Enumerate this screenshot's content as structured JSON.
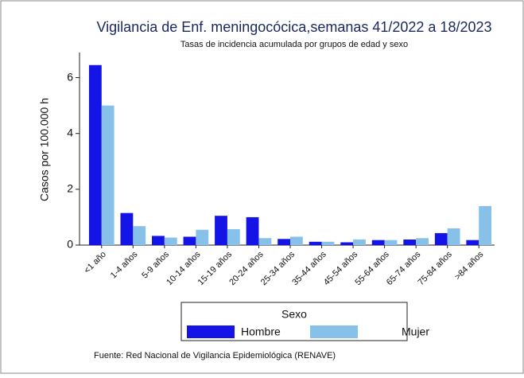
{
  "chart_data": {
    "type": "grouped_bar",
    "title": "Vigilancia de Enf. meningocócica,semanas 41/2022 a 18/2023",
    "subtitle": "Tasas de incidencia acumulada por grupos de edad y sexo",
    "y_label": "Casos por 100.000 h",
    "legend_title": "Sexo",
    "source": "Fuente: Red Nacional de Vigilancia Epidemiológica (RENAVE)",
    "categories": [
      "<1 año",
      "1-4 años",
      "5-9 años",
      "10-14 años",
      "15-19 años",
      "20-24 años",
      "25-34 años",
      "35-44 años",
      "45-54 años",
      "55-64 años",
      "65-74 años",
      "75-84 años",
      ">84 años"
    ],
    "series": [
      {
        "name": "Hombre",
        "color": "#1414e6",
        "values": [
          6.45,
          1.15,
          0.33,
          0.3,
          1.05,
          1.0,
          0.22,
          0.12,
          0.1,
          0.18,
          0.2,
          0.43,
          0.18
        ]
      },
      {
        "name": "Mujer",
        "color": "#87c1ea",
        "values": [
          5.0,
          0.68,
          0.27,
          0.55,
          0.57,
          0.25,
          0.3,
          0.12,
          0.2,
          0.18,
          0.25,
          0.6,
          1.4
        ]
      }
    ],
    "ylim": [
      0,
      6.9
    ],
    "yticks": [
      0,
      2,
      4,
      6
    ],
    "grid": false
  }
}
